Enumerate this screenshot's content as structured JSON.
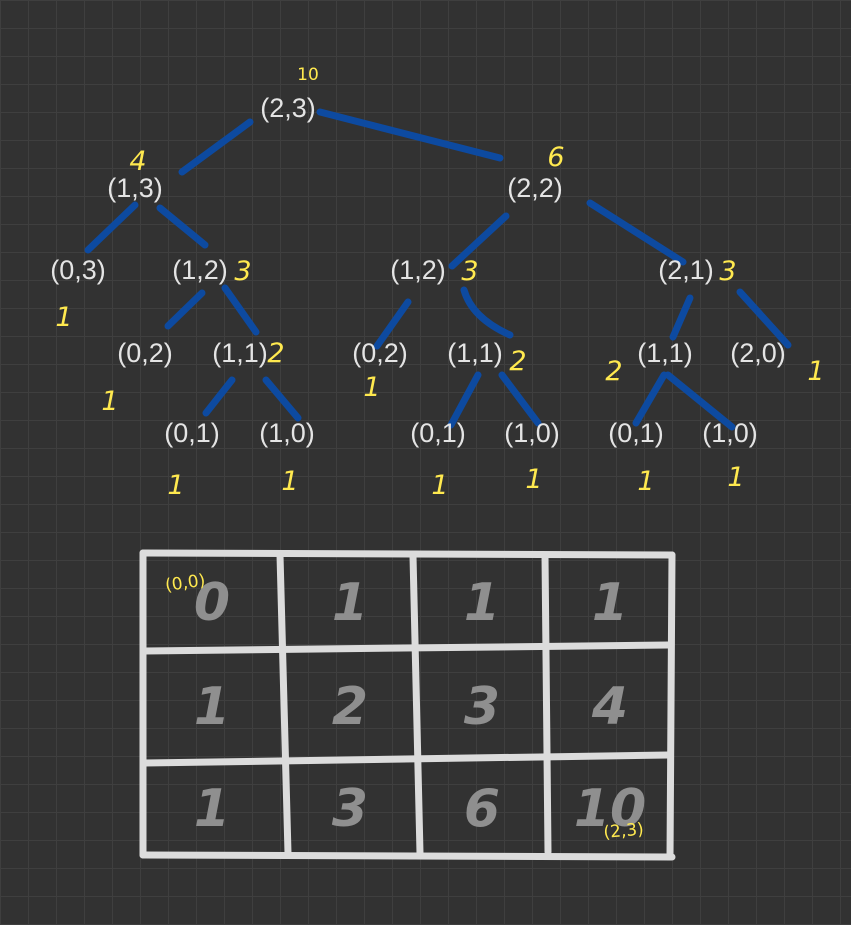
{
  "tree": {
    "nodes": [
      {
        "id": "n23",
        "label": "(2,3)",
        "count": "10"
      },
      {
        "id": "n13",
        "label": "(1,3)",
        "count": "4"
      },
      {
        "id": "n22",
        "label": "(2,2)",
        "count": "6"
      },
      {
        "id": "n03",
        "label": "(0,3)",
        "count": "1"
      },
      {
        "id": "n12a",
        "label": "(1,2)",
        "count": "3"
      },
      {
        "id": "n12b",
        "label": "(1,2)",
        "count": "3"
      },
      {
        "id": "n21",
        "label": "(2,1)",
        "count": "3"
      },
      {
        "id": "n02a",
        "label": "(0,2)",
        "count": "1"
      },
      {
        "id": "n11a",
        "label": "(1,1)",
        "count": "2"
      },
      {
        "id": "n02b",
        "label": "(0,2)",
        "count": "1"
      },
      {
        "id": "n11b",
        "label": "(1,1)",
        "count": "2"
      },
      {
        "id": "n11c",
        "label": "(1,1)",
        "count": "2"
      },
      {
        "id": "n20",
        "label": "(2,0)",
        "count": "1"
      },
      {
        "id": "n01a",
        "label": "(0,1)",
        "count": "1"
      },
      {
        "id": "n10a",
        "label": "(1,0)",
        "count": "1"
      },
      {
        "id": "n01b",
        "label": "(0,1)",
        "count": "1"
      },
      {
        "id": "n10b",
        "label": "(1,0)",
        "count": "1"
      },
      {
        "id": "n01c",
        "label": "(0,1)",
        "count": "1"
      },
      {
        "id": "n10c",
        "label": "(1,0)",
        "count": "1"
      }
    ],
    "edges": [
      [
        "n23",
        "n13"
      ],
      [
        "n23",
        "n22"
      ],
      [
        "n13",
        "n03"
      ],
      [
        "n13",
        "n12a"
      ],
      [
        "n22",
        "n12b"
      ],
      [
        "n22",
        "n21"
      ],
      [
        "n12a",
        "n02a"
      ],
      [
        "n12a",
        "n11a"
      ],
      [
        "n12b",
        "n02b"
      ],
      [
        "n12b",
        "n11b"
      ],
      [
        "n21",
        "n11c"
      ],
      [
        "n21",
        "n20"
      ],
      [
        "n11a",
        "n01a"
      ],
      [
        "n11a",
        "n10a"
      ],
      [
        "n11b",
        "n01b"
      ],
      [
        "n11b",
        "n10b"
      ],
      [
        "n11c",
        "n01c"
      ],
      [
        "n11c",
        "n10c"
      ]
    ]
  },
  "table": {
    "rows": [
      [
        "0",
        "1",
        "1",
        "1"
      ],
      [
        "1",
        "2",
        "3",
        "4"
      ],
      [
        "1",
        "3",
        "6",
        "10"
      ]
    ],
    "start_annotation": "(0,0)",
    "end_annotation": "(2,3)"
  },
  "colors": {
    "background": "#323232",
    "edge": "#0d4aa0",
    "annotation": "#ffe94f",
    "node_text": "#e4e4e4",
    "table_line": "#dcdcdc",
    "table_number": "#8f8f8f"
  }
}
